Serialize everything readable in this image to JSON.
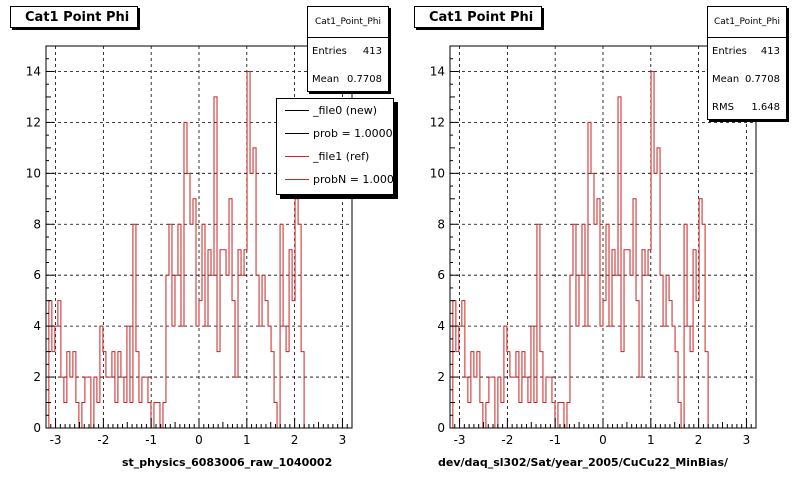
{
  "chart_data": [
    {
      "type": "line",
      "title": "Cat1 Point Phi",
      "xlabel": "st_physics_6083006_raw_1040002",
      "xlim": [
        -3.2,
        3.2
      ],
      "ylim": [
        0,
        15
      ],
      "xticks": [
        -3,
        -2,
        -1,
        0,
        1,
        2,
        3
      ],
      "yticks": [
        0,
        2,
        4,
        6,
        8,
        10,
        12,
        14
      ],
      "grid": true,
      "stats": {
        "title": "Cat1_Point_Phi",
        "rows": [
          {
            "label": "Entries",
            "value": "413"
          },
          {
            "label": "Mean",
            "value": "0.7708"
          }
        ]
      },
      "legend": {
        "placement": "top-right",
        "entries": [
          {
            "label": "_file0 (new)",
            "color": "#000000"
          },
          {
            "label": "prob = 1.000000",
            "color": "#000000"
          },
          {
            "label": "_file1 (ref)",
            "color": "#cc2222"
          },
          {
            "label": "probN = 1.000000",
            "color": "#cc2222"
          }
        ]
      },
      "series": [
        {
          "color": "#cc2222",
          "bin_width": 0.0628,
          "x_start": -3.14,
          "values": [
            5,
            3,
            4,
            5,
            2,
            1,
            3,
            2,
            3,
            1,
            0,
            1,
            2,
            2,
            0,
            2,
            1,
            4,
            3,
            2,
            2,
            3,
            1,
            3,
            2,
            1,
            4,
            1,
            8,
            3,
            1,
            2,
            2,
            1,
            0,
            1,
            1,
            0,
            1,
            6,
            8,
            4,
            6,
            8,
            4,
            12,
            10,
            8,
            9,
            4,
            5,
            8,
            4,
            7,
            6,
            13,
            3,
            7,
            7,
            6,
            9,
            5,
            2,
            7,
            6,
            7,
            14,
            10,
            11,
            6,
            4,
            6,
            5,
            4,
            3,
            1,
            0,
            8,
            4,
            3,
            7,
            5,
            9,
            8,
            3
          ]
        }
      ]
    },
    {
      "type": "line",
      "title": "Cat1 Point Phi",
      "xlabel": "dev/daq_sl302/Sat/year_2005/CuCu22_MinBias/",
      "xlim": [
        -3.2,
        3.2
      ],
      "ylim": [
        0,
        15
      ],
      "xticks": [
        -3,
        -2,
        -1,
        0,
        1,
        2,
        3
      ],
      "yticks": [
        0,
        2,
        4,
        6,
        8,
        10,
        12,
        14
      ],
      "grid": true,
      "stats": {
        "title": "Cat1_Point_Phi",
        "rows": [
          {
            "label": "Entries",
            "value": "413"
          },
          {
            "label": "Mean",
            "value": "0.7708"
          },
          {
            "label": "RMS",
            "value": "1.648"
          }
        ]
      },
      "series": [
        {
          "color": "#cc2222",
          "bin_width": 0.0628,
          "x_start": -3.14,
          "values": [
            5,
            3,
            4,
            5,
            2,
            1,
            3,
            2,
            3,
            1,
            0,
            1,
            2,
            2,
            0,
            2,
            1,
            4,
            3,
            2,
            2,
            3,
            1,
            3,
            2,
            1,
            4,
            1,
            8,
            3,
            1,
            2,
            2,
            1,
            0,
            1,
            1,
            0,
            1,
            6,
            8,
            4,
            6,
            8,
            4,
            12,
            10,
            8,
            9,
            4,
            5,
            8,
            4,
            7,
            6,
            13,
            3,
            7,
            7,
            6,
            9,
            5,
            2,
            7,
            6,
            7,
            14,
            10,
            11,
            6,
            4,
            6,
            5,
            4,
            3,
            1,
            0,
            8,
            4,
            3,
            7,
            5,
            9,
            8,
            3
          ]
        }
      ]
    }
  ]
}
